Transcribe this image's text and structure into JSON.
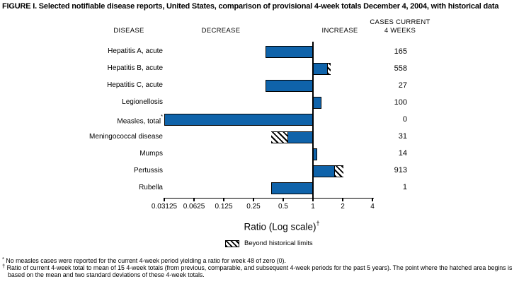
{
  "title": "FIGURE I. Selected notifiable disease reports, United States, comparison of provisional 4-week totals December 4, 2004, with historical data",
  "columns": {
    "disease": "DISEASE",
    "decrease": "DECREASE",
    "increase": "INCREASE",
    "cases_line1": "CASES CURRENT",
    "cases_line2": "4 WEEKS"
  },
  "chart_data": {
    "type": "bar",
    "orientation": "horizontal",
    "scale": "log2",
    "title": "Selected notifiable disease reports, comparison of provisional 4-week totals with historical data",
    "xlabel": "Ratio (Log scale)",
    "xlabel_sup": "†",
    "axis": {
      "min": 0.03125,
      "max": 4,
      "baseline": 1,
      "tick_values": [
        0.03125,
        0.0625,
        0.125,
        0.25,
        0.5,
        1,
        2,
        4
      ],
      "tick_labels": [
        "0.03125",
        "0.0625",
        "0.125",
        "0.25",
        "0.5",
        "1",
        "2",
        "4"
      ]
    },
    "rows": [
      {
        "disease": "Hepatitis A, acute",
        "sup": "",
        "ratio": 0.33,
        "limit": null,
        "beyond": false,
        "cases": "165"
      },
      {
        "disease": "Hepatitis B, acute",
        "sup": "",
        "ratio": 1.51,
        "limit": 1.41,
        "beyond": true,
        "cases": "558"
      },
      {
        "disease": "Hepatitis C, acute",
        "sup": "",
        "ratio": 0.33,
        "limit": null,
        "beyond": false,
        "cases": "27"
      },
      {
        "disease": "Legionellosis",
        "sup": "",
        "ratio": 1.22,
        "limit": null,
        "beyond": false,
        "cases": "100"
      },
      {
        "disease": "Measles, total",
        "sup": "*",
        "ratio": 0,
        "limit": null,
        "beyond": false,
        "cases": "0"
      },
      {
        "disease": "Meningococcal disease",
        "sup": "",
        "ratio": 0.38,
        "limit": 0.55,
        "beyond": true,
        "cases": "31"
      },
      {
        "disease": "Mumps",
        "sup": "",
        "ratio": 1.1,
        "limit": null,
        "beyond": false,
        "cases": "14"
      },
      {
        "disease": "Pertussis",
        "sup": "",
        "ratio": 2.05,
        "limit": 1.67,
        "beyond": true,
        "cases": "913"
      },
      {
        "disease": "Rubella",
        "sup": "",
        "ratio": 0.38,
        "limit": null,
        "beyond": false,
        "cases": "1"
      }
    ],
    "legend": {
      "position": "bottom",
      "label": "Beyond historical limits"
    }
  },
  "colors": {
    "bar_blue": "#0f63aa",
    "axis_black": "#000000",
    "background": "#ffffff"
  },
  "footnotes": [
    {
      "marker": "*",
      "text": "No measles cases were reported for the current 4-week period yielding a ratio for week 48 of zero (0)."
    },
    {
      "marker": "†",
      "text": "Ratio of current 4-week total to mean of 15 4-week totals (from previous, comparable, and subsequent 4-week periods for the past 5 years). The point where the hatched area begins is based on the mean and two standard deviations of these 4-week totals."
    }
  ]
}
